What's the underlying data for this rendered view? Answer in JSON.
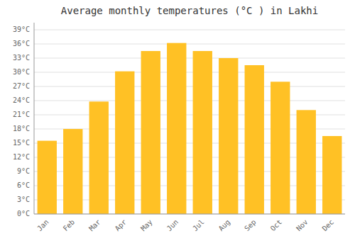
{
  "chart_data": {
    "type": "bar",
    "title": "Average monthly temperatures (°C ) in Lakhi",
    "categories": [
      "Jan",
      "Feb",
      "Mar",
      "Apr",
      "May",
      "Jun",
      "Jul",
      "Aug",
      "Sep",
      "Oct",
      "Nov",
      "Dec"
    ],
    "values": [
      15.5,
      18.0,
      23.8,
      30.2,
      34.5,
      36.2,
      34.5,
      33.0,
      31.5,
      28.0,
      22.0,
      16.5
    ],
    "color": "#FFC125",
    "ylim": [
      0,
      40.5
    ],
    "yticks": [
      {
        "value": 0,
        "label": "0°C"
      },
      {
        "value": 3,
        "label": "3°C"
      },
      {
        "value": 6,
        "label": "6°C"
      },
      {
        "value": 9,
        "label": "9°C"
      },
      {
        "value": 12,
        "label": "12°C"
      },
      {
        "value": 15,
        "label": "15°C"
      },
      {
        "value": 18,
        "label": "18°C"
      },
      {
        "value": 21,
        "label": "21°C"
      },
      {
        "value": 24,
        "label": "24°C"
      },
      {
        "value": 27,
        "label": "27°C"
      },
      {
        "value": 30,
        "label": "30°C"
      },
      {
        "value": 33,
        "label": "33°C"
      },
      {
        "value": 36,
        "label": "36°C"
      },
      {
        "value": 39,
        "label": "39°C"
      }
    ],
    "grid": true
  }
}
